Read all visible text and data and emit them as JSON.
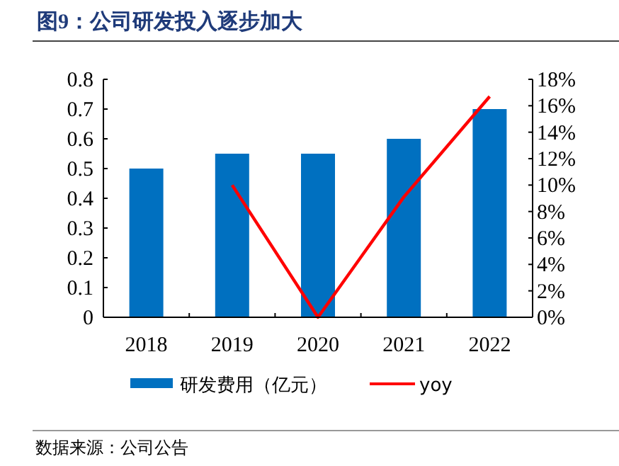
{
  "chart_data": {
    "type": "bar",
    "title": "图9：公司研发投入逐步加大",
    "categories": [
      "2018",
      "2019",
      "2020",
      "2021",
      "2022"
    ],
    "series": [
      {
        "name": "研发费用（亿元）",
        "color": "#0070c0",
        "values": [
          0.5,
          0.55,
          0.55,
          0.6,
          0.7
        ]
      },
      {
        "name": "yoy",
        "type": "line",
        "axis": "y2",
        "color": "#ff0000",
        "values": [
          null,
          10,
          0,
          9.1,
          16.7
        ]
      }
    ],
    "ylim": [
      0,
      0.8
    ],
    "yticks": [
      0,
      0.1,
      0.2,
      0.3,
      0.4,
      0.5,
      0.6,
      0.7,
      0.8
    ],
    "y2lim": [
      0,
      18
    ],
    "y2ticks": [
      {
        "value": 0,
        "label": "0%"
      },
      {
        "value": 2,
        "label": "2%"
      },
      {
        "value": 4,
        "label": "4%"
      },
      {
        "value": 6,
        "label": "6%"
      },
      {
        "value": 8,
        "label": "8%"
      },
      {
        "value": 10,
        "label": "10%"
      },
      {
        "value": 12,
        "label": "12%"
      },
      {
        "value": 14,
        "label": "14%"
      },
      {
        "value": 16,
        "label": "16%"
      },
      {
        "value": 18,
        "label": "18%"
      }
    ],
    "legend": "bottom",
    "annotations": [
      "数据来源：公司公告"
    ]
  }
}
